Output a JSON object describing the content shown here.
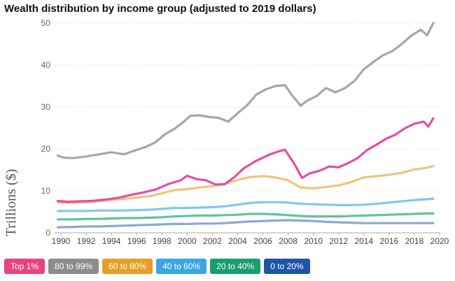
{
  "chart_data": {
    "type": "line",
    "title": "Wealth distribution by income group (adjusted to 2019 dollars)",
    "ylabel": "Trillions ($)",
    "xlabel": "",
    "xlim": [
      1989.5,
      2020
    ],
    "ylim": [
      0,
      50
    ],
    "yticks": [
      "0",
      "10",
      "20",
      "30",
      "40",
      "50"
    ],
    "xticks": [
      "1990",
      "1992",
      "1994",
      "1996",
      "1998",
      "2000",
      "2002",
      "2004",
      "2006",
      "2008",
      "2010",
      "2012",
      "2014",
      "2016",
      "2018",
      "2020"
    ],
    "grid": "horizontal-dotted",
    "legend_position": "bottom",
    "series": [
      {
        "name": "Top 1%",
        "color": "#e34ea6",
        "points": [
          [
            1989.75,
            7.6
          ],
          [
            1990.5,
            7.4
          ],
          [
            1991.5,
            7.5
          ],
          [
            1992.5,
            7.6
          ],
          [
            1993.5,
            7.9
          ],
          [
            1994.5,
            8.3
          ],
          [
            1995.5,
            9.0
          ],
          [
            1996.5,
            9.6
          ],
          [
            1997.5,
            10.3
          ],
          [
            1998.5,
            11.6
          ],
          [
            1999.5,
            12.5
          ],
          [
            2000,
            13.6
          ],
          [
            2000.75,
            12.8
          ],
          [
            2001.5,
            12.5
          ],
          [
            2002.25,
            11.5
          ],
          [
            2003,
            11.6
          ],
          [
            2003.75,
            13.3
          ],
          [
            2004.5,
            15.4
          ],
          [
            2005.5,
            17.2
          ],
          [
            2006.5,
            18.6
          ],
          [
            2007.25,
            19.4
          ],
          [
            2007.75,
            19.8
          ],
          [
            2008.5,
            16.4
          ],
          [
            2009.1,
            13.1
          ],
          [
            2009.75,
            14.2
          ],
          [
            2010.5,
            14.8
          ],
          [
            2011.25,
            15.8
          ],
          [
            2012,
            15.6
          ],
          [
            2012.75,
            16.6
          ],
          [
            2013.5,
            17.8
          ],
          [
            2014.25,
            19.7
          ],
          [
            2015,
            21.0
          ],
          [
            2015.75,
            22.4
          ],
          [
            2016.5,
            23.4
          ],
          [
            2017.25,
            24.9
          ],
          [
            2018,
            26.0
          ],
          [
            2018.75,
            26.5
          ],
          [
            2019.1,
            25.3
          ],
          [
            2019.5,
            27.3
          ]
        ]
      },
      {
        "name": "80 to 99%",
        "color": "#a6a6a6",
        "points": [
          [
            1989.75,
            18.4
          ],
          [
            1990.25,
            17.9
          ],
          [
            1991,
            17.8
          ],
          [
            1992,
            18.2
          ],
          [
            1993,
            18.7
          ],
          [
            1994,
            19.2
          ],
          [
            1995,
            18.7
          ],
          [
            1995.75,
            19.5
          ],
          [
            1996.75,
            20.5
          ],
          [
            1997.5,
            21.6
          ],
          [
            1998.25,
            23.5
          ],
          [
            1999,
            24.8
          ],
          [
            1999.75,
            26.5
          ],
          [
            2000.25,
            27.9
          ],
          [
            2001,
            28.0
          ],
          [
            2001.75,
            27.6
          ],
          [
            2002.5,
            27.4
          ],
          [
            2003.25,
            26.5
          ],
          [
            2004,
            28.5
          ],
          [
            2004.75,
            30.4
          ],
          [
            2005.5,
            33.0
          ],
          [
            2006.25,
            34.2
          ],
          [
            2007,
            35.0
          ],
          [
            2007.75,
            35.2
          ],
          [
            2008.25,
            33.0
          ],
          [
            2009,
            30.3
          ],
          [
            2009.5,
            31.5
          ],
          [
            2010.25,
            32.6
          ],
          [
            2011,
            34.5
          ],
          [
            2011.75,
            33.5
          ],
          [
            2012.5,
            34.5
          ],
          [
            2013.25,
            36.2
          ],
          [
            2014,
            39.0
          ],
          [
            2014.75,
            40.7
          ],
          [
            2015.5,
            42.3
          ],
          [
            2016.25,
            43.3
          ],
          [
            2017,
            45.0
          ],
          [
            2017.75,
            47.0
          ],
          [
            2018.5,
            48.4
          ],
          [
            2019,
            47.1
          ],
          [
            2019.5,
            50.0
          ]
        ]
      },
      {
        "name": "60 to 80%",
        "color": "#f0c47a",
        "points": [
          [
            1989.75,
            7.2
          ],
          [
            1991,
            7.1
          ],
          [
            1992,
            7.3
          ],
          [
            1993,
            7.5
          ],
          [
            1994,
            7.8
          ],
          [
            1995,
            8.1
          ],
          [
            1996,
            8.4
          ],
          [
            1997,
            8.7
          ],
          [
            1998,
            9.4
          ],
          [
            1999,
            10.2
          ],
          [
            2000,
            10.4
          ],
          [
            2001,
            10.8
          ],
          [
            2002,
            11.1
          ],
          [
            2003,
            11.6
          ],
          [
            2004,
            12.6
          ],
          [
            2005,
            13.3
          ],
          [
            2006,
            13.5
          ],
          [
            2007,
            13.2
          ],
          [
            2008,
            12.5
          ],
          [
            2009,
            10.8
          ],
          [
            2010,
            10.6
          ],
          [
            2011,
            10.9
          ],
          [
            2012,
            11.3
          ],
          [
            2013,
            12.1
          ],
          [
            2014,
            13.2
          ],
          [
            2015,
            13.5
          ],
          [
            2016,
            13.8
          ],
          [
            2017,
            14.3
          ],
          [
            2018,
            15.1
          ],
          [
            2019,
            15.5
          ],
          [
            2019.5,
            15.9
          ]
        ]
      },
      {
        "name": "40 to 60%",
        "color": "#7ec8f0",
        "points": [
          [
            1989.75,
            5.2
          ],
          [
            1991,
            5.2
          ],
          [
            1992,
            5.2
          ],
          [
            1993,
            5.3
          ],
          [
            1994,
            5.3
          ],
          [
            1995,
            5.3
          ],
          [
            1996,
            5.4
          ],
          [
            1997,
            5.5
          ],
          [
            1998,
            5.7
          ],
          [
            1999,
            5.9
          ],
          [
            2000,
            5.9
          ],
          [
            2001,
            6.0
          ],
          [
            2002,
            6.1
          ],
          [
            2003,
            6.3
          ],
          [
            2004,
            6.7
          ],
          [
            2005,
            7.1
          ],
          [
            2006,
            7.3
          ],
          [
            2007,
            7.3
          ],
          [
            2008,
            7.2
          ],
          [
            2009,
            6.9
          ],
          [
            2010,
            6.8
          ],
          [
            2011,
            6.7
          ],
          [
            2012,
            6.6
          ],
          [
            2013,
            6.6
          ],
          [
            2014,
            6.7
          ],
          [
            2015,
            6.9
          ],
          [
            2016,
            7.2
          ],
          [
            2017,
            7.5
          ],
          [
            2018,
            7.8
          ],
          [
            2019,
            8.0
          ],
          [
            2019.5,
            8.1
          ]
        ]
      },
      {
        "name": "20 to 40%",
        "color": "#5ec49e",
        "points": [
          [
            1989.75,
            3.2
          ],
          [
            1991,
            3.2
          ],
          [
            1992,
            3.3
          ],
          [
            1993,
            3.3
          ],
          [
            1994,
            3.4
          ],
          [
            1995,
            3.5
          ],
          [
            1996,
            3.5
          ],
          [
            1997,
            3.6
          ],
          [
            1998,
            3.7
          ],
          [
            1999,
            3.9
          ],
          [
            2000,
            4.0
          ],
          [
            2001,
            4.1
          ],
          [
            2002,
            4.1
          ],
          [
            2003,
            4.2
          ],
          [
            2004,
            4.3
          ],
          [
            2005,
            4.5
          ],
          [
            2006,
            4.5
          ],
          [
            2007,
            4.4
          ],
          [
            2008,
            4.2
          ],
          [
            2009,
            4.0
          ],
          [
            2010,
            3.9
          ],
          [
            2011,
            3.9
          ],
          [
            2012,
            3.9
          ],
          [
            2013,
            4.0
          ],
          [
            2014,
            4.1
          ],
          [
            2015,
            4.2
          ],
          [
            2016,
            4.3
          ],
          [
            2017,
            4.4
          ],
          [
            2018,
            4.5
          ],
          [
            2019,
            4.6
          ],
          [
            2019.5,
            4.6
          ]
        ]
      },
      {
        "name": "0 to 20%",
        "color": "#8aa8d4",
        "points": [
          [
            1989.75,
            1.3
          ],
          [
            1991,
            1.4
          ],
          [
            1992,
            1.5
          ],
          [
            1993,
            1.5
          ],
          [
            1994,
            1.6
          ],
          [
            1995,
            1.7
          ],
          [
            1996,
            1.8
          ],
          [
            1997,
            1.9
          ],
          [
            1998,
            2.0
          ],
          [
            1999,
            2.1
          ],
          [
            2000,
            2.1
          ],
          [
            2001,
            2.2
          ],
          [
            2002,
            2.2
          ],
          [
            2003,
            2.3
          ],
          [
            2004,
            2.5
          ],
          [
            2005,
            2.7
          ],
          [
            2006,
            2.8
          ],
          [
            2007,
            2.9
          ],
          [
            2008,
            3.0
          ],
          [
            2009,
            2.9
          ],
          [
            2010,
            2.8
          ],
          [
            2011,
            2.6
          ],
          [
            2012,
            2.5
          ],
          [
            2013,
            2.4
          ],
          [
            2014,
            2.3
          ],
          [
            2015,
            2.3
          ],
          [
            2016,
            2.3
          ],
          [
            2017,
            2.3
          ],
          [
            2018,
            2.3
          ],
          [
            2019,
            2.3
          ],
          [
            2019.5,
            2.3
          ]
        ]
      }
    ]
  },
  "legend": [
    {
      "label": "Top 1%",
      "color": "#e8447f"
    },
    {
      "label": "80 to 99%",
      "color": "#8c8c8c"
    },
    {
      "label": "60 to 80%",
      "color": "#e4a028"
    },
    {
      "label": "40 to 60%",
      "color": "#3aa6e4"
    },
    {
      "label": "20 to 40%",
      "color": "#199e6f"
    },
    {
      "label": "0 to 20%",
      "color": "#1f55a8"
    }
  ]
}
